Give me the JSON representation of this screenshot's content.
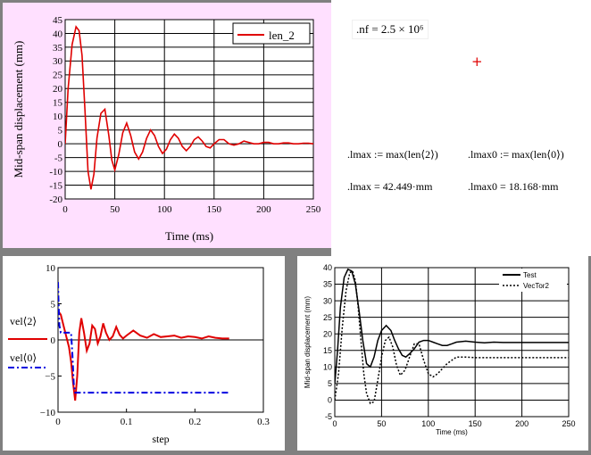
{
  "worksheet": {
    "nf_text": ".nf = 2.5 × 10⁶",
    "marker": "+",
    "lmax_def": ".lmax := max(len⟨2⟩)",
    "lmax0_def": ".lmax0 := max(len⟨0⟩)",
    "lmax_val": ".lmax = 42.449·mm",
    "lmax0_val": ".lmax0 = 18.168·mm"
  },
  "colors": {
    "series_red": "#e00000",
    "series_blue": "#0000e0",
    "plot_bg_pink": "#ffe0ff"
  },
  "chart_data": [
    {
      "type": "line",
      "title": "",
      "xlabel": "Time (ms)",
      "ylabel": "Mid-span displacement (mm)",
      "xlim": [
        0,
        250
      ],
      "ylim": [
        -20,
        45
      ],
      "xticks": [
        "0",
        "50",
        "100",
        "150",
        "200",
        "250"
      ],
      "yticks": [
        "-20",
        "-15",
        "-10",
        "-5",
        "0",
        "5",
        "10",
        "15",
        "20",
        "25",
        "30",
        "35",
        "40",
        "45"
      ],
      "grid": true,
      "legend": "top-right",
      "series": [
        {
          "name": "len_2",
          "color": "#e00000",
          "x": [
            0,
            3,
            7,
            11,
            14,
            17,
            20,
            23,
            26,
            29,
            32,
            36,
            40,
            44,
            47,
            50,
            54,
            58,
            62,
            66,
            70,
            74,
            78,
            82,
            86,
            90,
            94,
            98,
            102,
            106,
            110,
            114,
            118,
            122,
            126,
            130,
            134,
            138,
            142,
            146,
            150,
            155,
            160,
            165,
            170,
            175,
            180,
            185,
            190,
            195,
            200,
            205,
            210,
            215,
            220,
            225,
            230,
            235,
            240,
            245,
            250
          ],
          "y": [
            0,
            20,
            36,
            42.4,
            41,
            32,
            12,
            -10,
            -16.5,
            -11,
            2,
            11,
            12.5,
            3,
            -6,
            -9.5,
            -4,
            4,
            7.5,
            3,
            -3,
            -5.5,
            -3,
            2,
            5,
            3,
            -1,
            -3.5,
            -2,
            1.5,
            3.5,
            2,
            -1,
            -2.5,
            -1,
            1.5,
            2.5,
            1,
            -1,
            -1.5,
            0,
            1.5,
            1.5,
            0,
            -0.5,
            0,
            1,
            0.5,
            0,
            0,
            0.5,
            0.5,
            0,
            0,
            0.3,
            0.3,
            0,
            0,
            0.2,
            0.2,
            0
          ]
        }
      ]
    },
    {
      "type": "line",
      "title": "",
      "xlabel": "step",
      "ylabel": "",
      "xlim": [
        0,
        0.3
      ],
      "ylim": [
        -10,
        10
      ],
      "xticks": [
        "0",
        "0.1",
        "0.2",
        "0.3"
      ],
      "yticks": [
        "−10",
        "−5",
        "0",
        "5",
        "10"
      ],
      "grid": false,
      "legend": "left",
      "legend_labels": [
        "vel⟨2⟩",
        "vel⟨0⟩"
      ],
      "series": [
        {
          "name": "vel⟨2⟩",
          "color": "#e00000",
          "x": [
            0,
            0.004,
            0.008,
            0.012,
            0.016,
            0.019,
            0.022,
            0.025,
            0.028,
            0.031,
            0.034,
            0.038,
            0.042,
            0.046,
            0.05,
            0.054,
            0.058,
            0.062,
            0.066,
            0.07,
            0.075,
            0.08,
            0.085,
            0.09,
            0.095,
            0.1,
            0.11,
            0.12,
            0.13,
            0.14,
            0.15,
            0.16,
            0.17,
            0.18,
            0.19,
            0.2,
            0.21,
            0.22,
            0.23,
            0.24,
            0.25
          ],
          "y": [
            4,
            3.5,
            2,
            0.5,
            -1,
            -3,
            -6,
            -8.4,
            -5,
            1,
            3,
            1,
            -1.5,
            -0.5,
            2,
            1.5,
            -0.5,
            0.5,
            2.3,
            1,
            0,
            0.5,
            1.8,
            0.7,
            0.2,
            0.6,
            1.3,
            0.6,
            0.3,
            0.8,
            0.4,
            0.5,
            0.6,
            0.3,
            0.5,
            0.4,
            0.2,
            0.5,
            0.3,
            0.2,
            0.2
          ]
        },
        {
          "name": "vel⟨0⟩",
          "color": "#0000e0",
          "dash": "dashdot",
          "x": [
            0,
            0.0005,
            0.002,
            0.004,
            0.006,
            0.008,
            0.01,
            0.013,
            0.016,
            0.019,
            0.021,
            0.023,
            0.025,
            0.027,
            0.03,
            0.05,
            0.1,
            0.15,
            0.2,
            0.25
          ],
          "y": [
            8,
            6,
            2,
            1,
            1,
            1,
            1,
            1,
            1,
            1,
            -2,
            -6,
            -7.3,
            -7.3,
            -7.3,
            -7.3,
            -7.3,
            -7.3,
            -7.3,
            -7.3
          ]
        }
      ]
    },
    {
      "type": "line",
      "title": "",
      "xlabel": "Time (ms)",
      "ylabel": "Mid-span displacement (mm)",
      "xlim": [
        0,
        250
      ],
      "ylim": [
        -5,
        40
      ],
      "xticks": [
        "0",
        "50",
        "100",
        "150",
        "200",
        "250"
      ],
      "yticks": [
        "-5",
        "0",
        "5",
        "10",
        "15",
        "20",
        "25",
        "30",
        "35",
        "40"
      ],
      "grid": true,
      "legend": "top-right",
      "series": [
        {
          "name": "Test",
          "color": "#000000",
          "x": [
            0,
            3,
            6,
            10,
            14,
            18,
            22,
            26,
            30,
            34,
            38,
            42,
            46,
            50,
            55,
            60,
            64,
            68,
            72,
            76,
            80,
            85,
            90,
            95,
            100,
            105,
            110,
            115,
            120,
            125,
            130,
            140,
            150,
            160,
            170,
            180,
            190,
            200,
            220,
            240,
            260
          ],
          "y": [
            5,
            15,
            28,
            37,
            39.5,
            39,
            35,
            27,
            18,
            11,
            10,
            13,
            18,
            21,
            22.5,
            21,
            18,
            15.5,
            13.5,
            13,
            14,
            15.5,
            17.5,
            18,
            18,
            17.5,
            17,
            16.5,
            16.5,
            17,
            17.5,
            17.8,
            17.5,
            17.3,
            17.5,
            17.4,
            17.4,
            17.4,
            17.4,
            17.4,
            17.4
          ]
        },
        {
          "name": "VecTor2",
          "color": "#000000",
          "dash": "dotted",
          "x": [
            0,
            4,
            8,
            12,
            16,
            19,
            22,
            25,
            28,
            31,
            34,
            38,
            42,
            46,
            50,
            54,
            58,
            62,
            66,
            70,
            75,
            80,
            85,
            90,
            95,
            100,
            105,
            110,
            120,
            130,
            140,
            150,
            160,
            180,
            200,
            220,
            240,
            260
          ],
          "y": [
            0,
            8,
            22,
            33,
            38.5,
            39,
            36,
            28,
            18,
            8,
            2,
            -1,
            -0.5,
            6,
            13,
            18,
            19,
            16,
            10.5,
            7.5,
            9,
            13,
            17,
            17,
            12,
            8,
            7,
            8,
            11,
            13,
            13,
            12.8,
            12.8,
            12.8,
            12.8,
            12.8,
            12.8,
            12.8
          ]
        }
      ]
    }
  ]
}
